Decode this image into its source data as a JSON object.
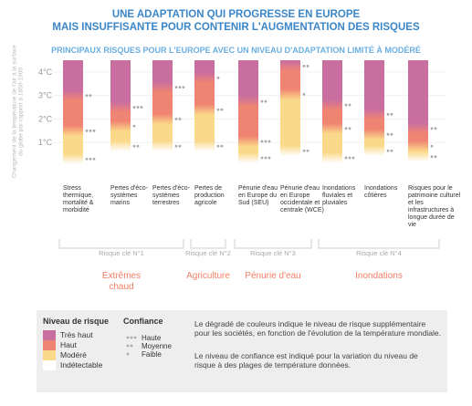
{
  "chart_data": {
    "type": "ember",
    "title": "UNE ADAPTATION QUI PROGRESSE EN EUROPE",
    "title2": "MAIS INSUFFISANTE POUR CONTENIR L'AUGMENTATION DES RISQUES",
    "subtitle": "PRINCIPAUX RISQUES POUR L'EUROPE AVEC UN NIVEAU D'ADAPTATION LIMITÉ À MODÉRÉ",
    "y_label": "Changement de la température de l'air à la surface du globe par rapport à 1850-1900",
    "ylim": [
      0,
      4.5
    ],
    "yticks": [
      {
        "value": 1,
        "label": "1°C"
      },
      {
        "value": 2,
        "label": "2°C"
      },
      {
        "value": 3,
        "label": "3°C"
      },
      {
        "value": 4,
        "label": "4°C"
      }
    ],
    "levels": [
      {
        "name": "Très haut",
        "color": "#c96fa0"
      },
      {
        "name": "Haut",
        "color": "#f08472"
      },
      {
        "name": "Modéré",
        "color": "#fbd98a"
      },
      {
        "name": "Indétectable",
        "color": "#ffffff"
      }
    ],
    "confidence_legend": [
      {
        "name": "Haute",
        "dots": 3
      },
      {
        "name": "Moyenne",
        "dots": 2
      },
      {
        "name": "Faible",
        "dots": 1
      }
    ],
    "embers": [
      {
        "name": "Stress thermique, mortalité & morbidité",
        "transitions": [
          0.3,
          1.5,
          3.0
        ],
        "confidence": [
          3,
          3,
          2
        ]
      },
      {
        "name": "Pertes d'éco-systèmes marins",
        "transitions": [
          0.85,
          1.7,
          2.5
        ],
        "confidence": [
          2,
          1,
          3
        ]
      },
      {
        "name": "Pertes d'éco-systèmes terrestres",
        "transitions": [
          0.85,
          2.0,
          3.35
        ],
        "confidence": [
          2,
          2,
          3
        ]
      },
      {
        "name": "Pertes de production agricole",
        "transitions": [
          0.85,
          2.4,
          3.75
        ],
        "confidence": [
          2,
          2,
          1
        ]
      },
      {
        "name": "Pénurie d'eau en Europe du Sud (SEU)",
        "transitions": [
          0.35,
          1.05,
          2.75
        ],
        "confidence": [
          3,
          3,
          2
        ]
      },
      {
        "name": "Pénurie d'eau en Europe occidentale et centrale (WCE)",
        "transitions": [
          0.65,
          3.05,
          4.25
        ],
        "confidence": [
          2,
          1,
          2
        ]
      },
      {
        "name": "Inondations fluviales et pluviales",
        "transitions": [
          0.35,
          1.6,
          2.6
        ],
        "confidence": [
          3,
          2,
          2
        ]
      },
      {
        "name": "Inondations côtières",
        "transitions": [
          0.65,
          1.35,
          2.2
        ],
        "confidence": [
          2,
          2,
          2
        ]
      },
      {
        "name": "Risques pour le patrimoine culturel et les infrastructures à longue durée de vie",
        "transitions": [
          0.4,
          0.85,
          1.6
        ],
        "confidence": [
          2,
          1,
          2
        ]
      }
    ],
    "groups": [
      {
        "label": "Risque clé N°1",
        "name": "Extrêmes chaud",
        "first": 0,
        "last": 2
      },
      {
        "label": "Risque clé N°2",
        "name": "Agriculture",
        "first": 3,
        "last": 3
      },
      {
        "label": "Risque clé N°3",
        "name": "Pénurie d'eau",
        "first": 4,
        "last": 5
      },
      {
        "label": "Risque clé N°4",
        "name": "Inondations",
        "first": 6,
        "last": 8
      }
    ],
    "legend_title": "Niveau de risque",
    "confidence_title": "Confiance",
    "note1": "Le dégradé de couleurs indique le niveau de risque supplémentaire pour les sociétés, en fonction de l'évolution de la température mondiale.",
    "note2": "Le niveau de confiance est indiqué pour la variation du niveau de risque à des plages de température données."
  }
}
